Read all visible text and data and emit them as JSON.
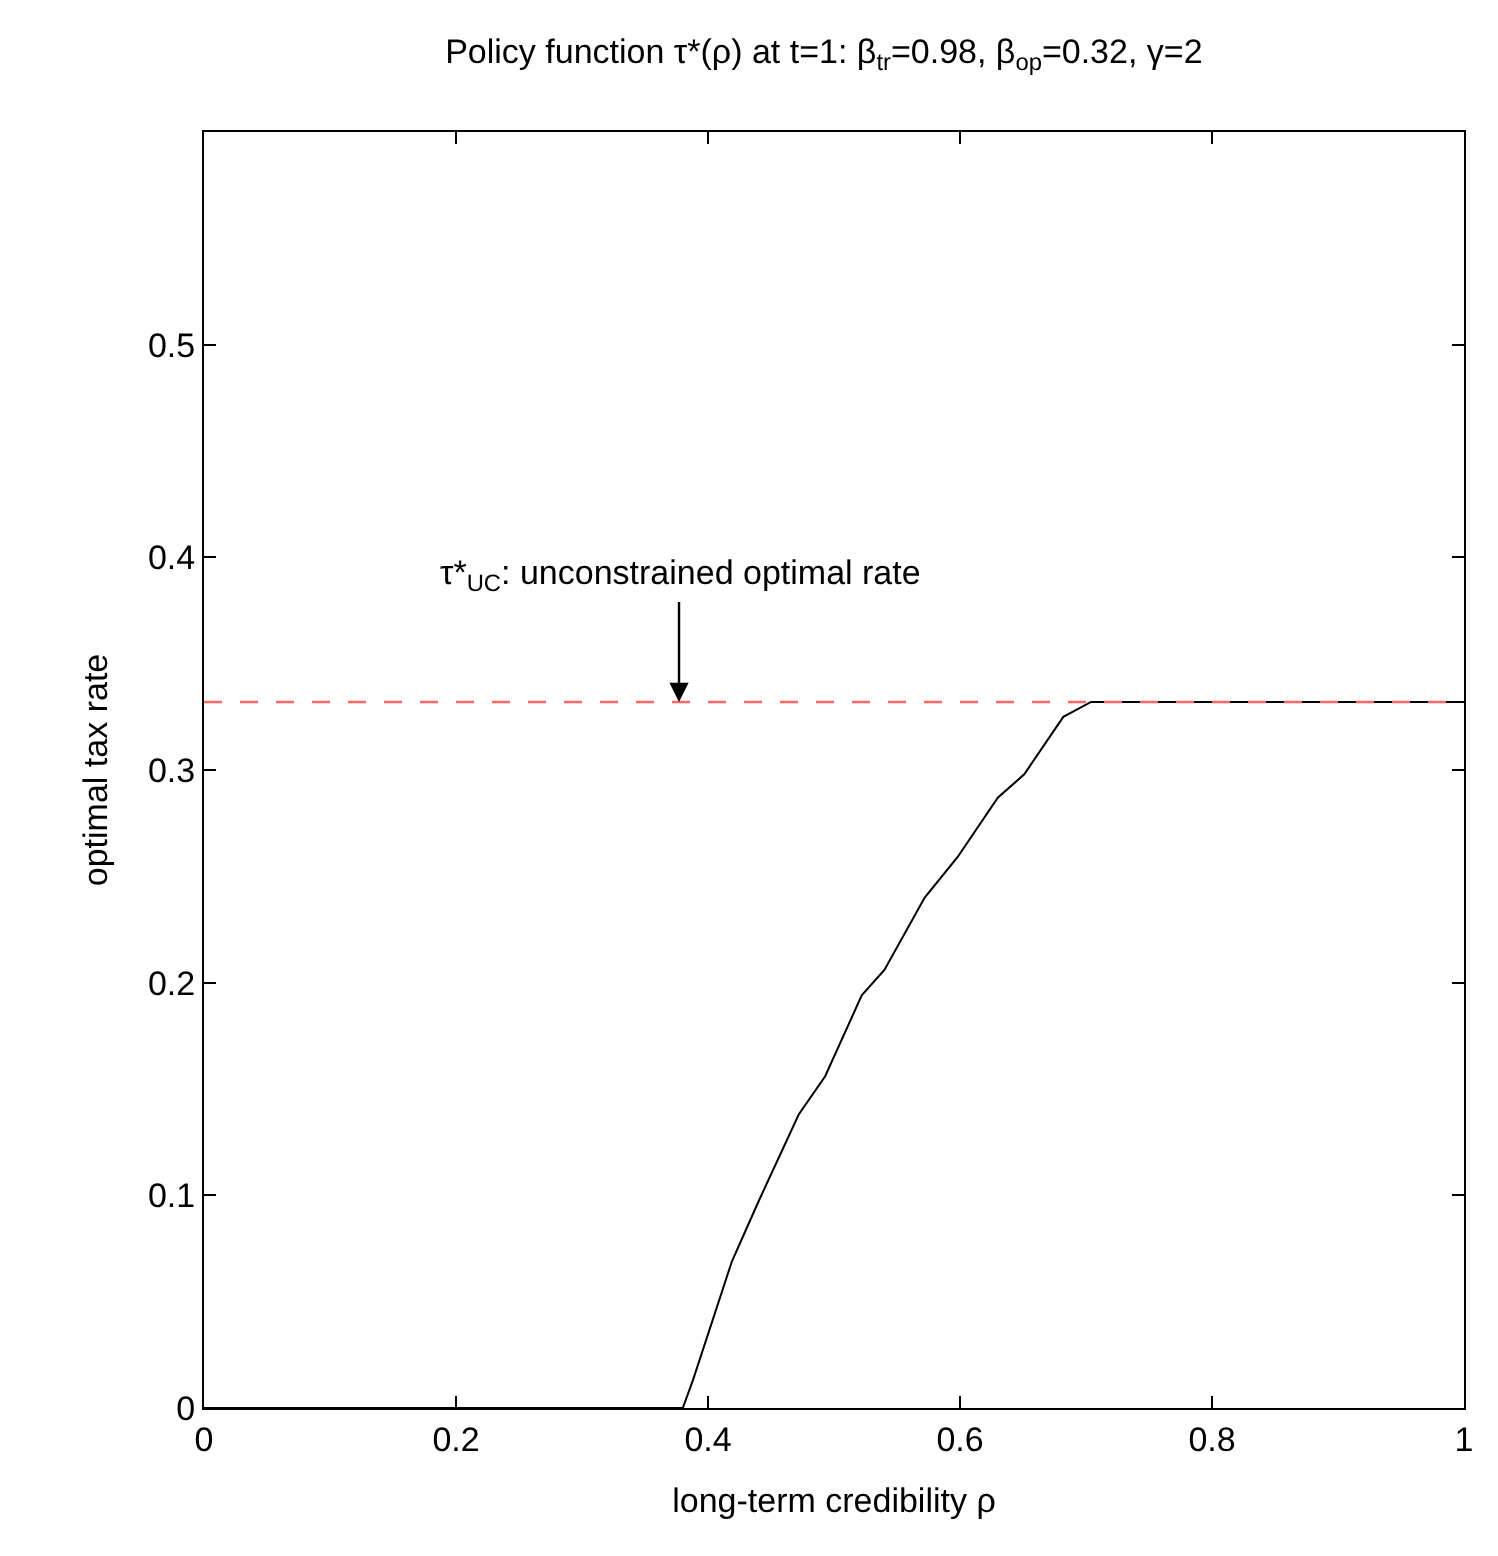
{
  "chart_data": {
    "type": "line",
    "title": "Policy function τ*(ρ) at t=1: β$_{tr}$=0.98, β$_{op}$=0.32, γ=2",
    "xlabel": "long-term credibility ρ",
    "ylabel": "optimal tax rate",
    "x": [
      0,
      0.29,
      0.3,
      0.31,
      0.37,
      0.38,
      0.388,
      0.419,
      0.44,
      0.472,
      0.493,
      0.522,
      0.54,
      0.572,
      0.598,
      0.63,
      0.651,
      0.682,
      0.704,
      1
    ],
    "series": [
      {
        "color": "#000000",
        "values": [
          0,
          0,
          0,
          0,
          0,
          0,
          0.013,
          0.069,
          0.097,
          0.138,
          0.156,
          0.194,
          0.206,
          0.24,
          0.259,
          0.287,
          0.298,
          0.325,
          0.332,
          0.332
        ]
      }
    ],
    "ref_lines": [
      {
        "axis": "y",
        "value": 0.332,
        "color": "#ff6666",
        "line_style": "dashed"
      }
    ],
    "annotations": [
      {
        "text": "τ*$_{UC}$: unconstrained optimal rate",
        "x": 0.377,
        "y": 0.332
      }
    ],
    "xlim": [
      0,
      1
    ],
    "ylim": [
      0,
      0.6
    ],
    "xticks": [
      0,
      0.2,
      0.4,
      0.6,
      0.8,
      1
    ],
    "yticks": [
      0,
      0.1,
      0.2,
      0.3,
      0.4,
      0.5
    ],
    "marker": "none",
    "line_style": "solid"
  }
}
